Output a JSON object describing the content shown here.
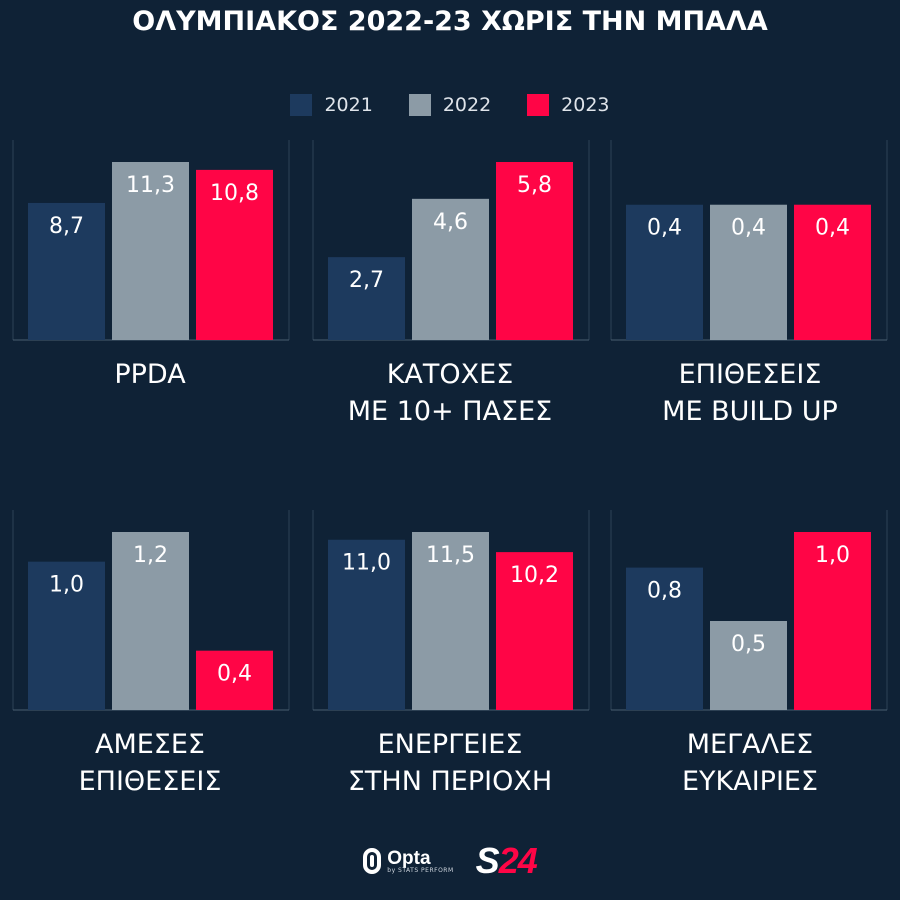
{
  "title": "ΟΛΥΜΠΙΑΚΟΣ 2022-23 ΧΩΡΙΣ ΤΗΝ ΜΠΑΛΑ",
  "legend": [
    {
      "label": "2021",
      "color": "#1d3a5e"
    },
    {
      "label": "2022",
      "color": "#8c9ba6"
    },
    {
      "label": "2023",
      "color": "#ff0546"
    }
  ],
  "chart_data": [
    {
      "type": "bar",
      "label": "PPDA",
      "categories": [
        "2021",
        "2022",
        "2023"
      ],
      "values": [
        8.7,
        11.3,
        10.8
      ],
      "value_labels": [
        "8,7",
        "11,3",
        "10,8"
      ]
    },
    {
      "type": "bar",
      "label": "ΚΑΤΟΧΕΣ\nΜΕ 10+ ΠΑΣΕΣ",
      "categories": [
        "2021",
        "2022",
        "2023"
      ],
      "values": [
        2.7,
        4.6,
        5.8
      ],
      "value_labels": [
        "2,7",
        "4,6",
        "5,8"
      ]
    },
    {
      "type": "bar",
      "label": "ΕΠΙΘΕΣΕΙΣ\nΜΕ BUILD UP",
      "categories": [
        "2021",
        "2022",
        "2023"
      ],
      "values": [
        0.4,
        0.4,
        0.4
      ],
      "value_labels": [
        "0,4",
        "0,4",
        "0,4"
      ]
    },
    {
      "type": "bar",
      "label": "ΑΜΕΣΕΣ\nΕΠΙΘΕΣΕΙΣ",
      "categories": [
        "2021",
        "2022",
        "2023"
      ],
      "values": [
        1.0,
        1.2,
        0.4
      ],
      "value_labels": [
        "1,0",
        "1,2",
        "0,4"
      ]
    },
    {
      "type": "bar",
      "label": "ΕΝΕΡΓΕΙΕΣ\nΣΤΗΝ ΠΕΡΙΟΧΗ",
      "categories": [
        "2021",
        "2022",
        "2023"
      ],
      "values": [
        11.0,
        11.5,
        10.2
      ],
      "value_labels": [
        "11,0",
        "11,5",
        "10,2"
      ]
    },
    {
      "type": "bar",
      "label": "ΜΕΓΑΛΕΣ\nΕΥΚΑΙΡΙΕΣ",
      "categories": [
        "2021",
        "2022",
        "2023"
      ],
      "values": [
        0.8,
        0.5,
        1.0
      ],
      "value_labels": [
        "0,8",
        "0,5",
        "1,0"
      ]
    }
  ],
  "footer": {
    "brand_opta": "Opta",
    "brand_opta_sub": "by STATS PERFORM",
    "brand_s": "S",
    "brand_24": "24"
  }
}
